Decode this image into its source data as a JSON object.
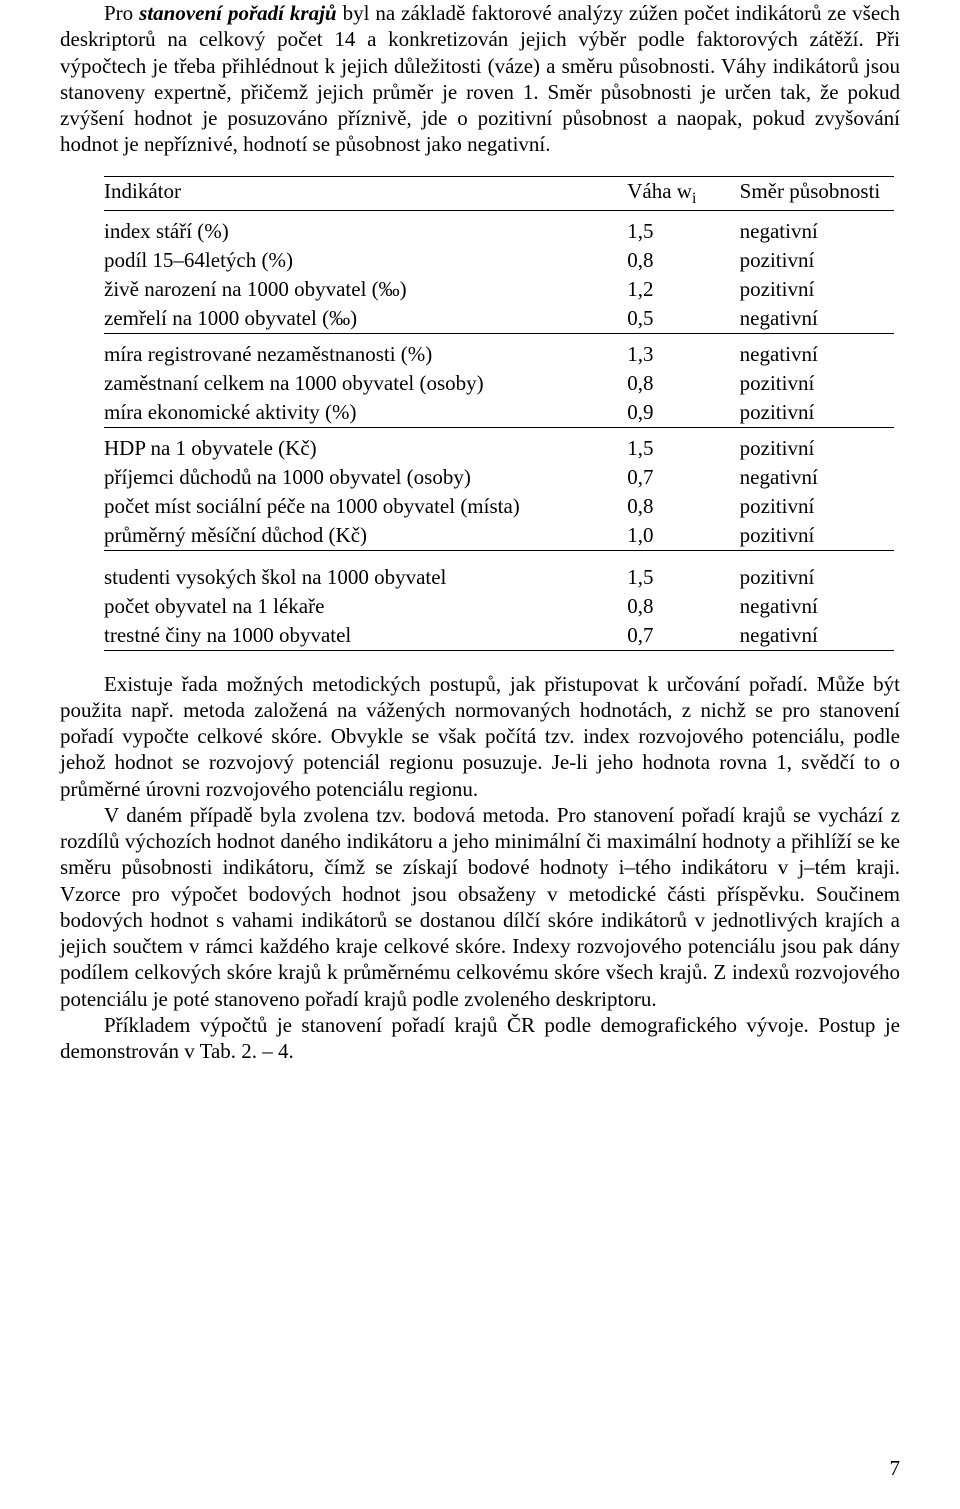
{
  "para1_lead": "Pro ",
  "para1_bold": "stanovení pořadí krajů",
  "para1_rest": " byl na základě faktorové analýzy zúžen počet indikátorů ze všech deskriptorů na celkový počet 14 a konkretizován jejich výběr podle faktorových zátěží. Při výpočtech je třeba přihlédnout k jejich důležitosti (váze) a směru působnosti. Váhy indikátorů jsou stanoveny expertně, přičemž jejich průměr je roven 1. Směr působnosti je určen tak, že pokud zvýšení hodnot je posuzováno příznivě, jde o pozitivní působnost a naopak, pokud zvyšování hodnot je nepříznivé, hodnotí se působnost jako negativní.",
  "table": {
    "header": {
      "c1": "Indikátor",
      "c2_a": "Váha w",
      "c2_b": "i",
      "c3": "Směr působnosti"
    },
    "groups": [
      [
        {
          "ind": "index stáří (%)",
          "w": "1,5",
          "dir": "negativní"
        },
        {
          "ind": "podíl 15–64letých (%)",
          "w": "0,8",
          "dir": "pozitivní"
        },
        {
          "ind": "živě narození na 1000 obyvatel (‰)",
          "w": "1,2",
          "dir": "pozitivní"
        },
        {
          "ind": "zemřelí na 1000 obyvatel (‰)",
          "w": "0,5",
          "dir": "negativní"
        }
      ],
      [
        {
          "ind": "míra registrované nezaměstnanosti (%)",
          "w": "1,3",
          "dir": "negativní"
        },
        {
          "ind": "zaměstnaní celkem na 1000 obyvatel (osoby)",
          "w": "0,8",
          "dir": "pozitivní"
        },
        {
          "ind": "míra ekonomické aktivity (%)",
          "w": "0,9",
          "dir": "pozitivní"
        }
      ],
      [
        {
          "ind": "HDP na 1 obyvatele (Kč)",
          "w": "1,5",
          "dir": "pozitivní"
        },
        {
          "ind": "příjemci důchodů na 1000 obyvatel (osoby)",
          "w": "0,7",
          "dir": "negativní"
        },
        {
          "ind": "počet míst sociální péče na 1000 obyvatel (místa)",
          "w": "0,8",
          "dir": "pozitivní"
        },
        {
          "ind": "průměrný měsíční důchod (Kč)",
          "w": "1,0",
          "dir": "pozitivní"
        }
      ],
      [
        {
          "ind": "studenti vysokých škol na 1000 obyvatel",
          "w": "1,5",
          "dir": "pozitivní"
        },
        {
          "ind": "počet obyvatel na 1 lékaře",
          "w": "0,8",
          "dir": "negativní"
        },
        {
          "ind": "trestné činy na 1000 obyvatel",
          "w": "0,7",
          "dir": "negativní"
        }
      ]
    ]
  },
  "para2": "Existuje řada možných metodických postupů, jak přistupovat k určování pořadí. Může být použita např. metoda založená na vážených normovaných hodnotách, z nichž se pro stanovení pořadí vypočte celkové skóre. Obvykle se však počítá tzv. index rozvojového potenciálu, podle jehož hodnot se rozvojový potenciál regionu posuzuje. Je-li jeho hodnota rovna 1, svědčí to o průměrné úrovni rozvojového potenciálu regionu.",
  "para3": "V daném případě byla zvolena tzv. bodová metoda. Pro stanovení pořadí krajů se vychází z rozdílů výchozích hodnot daného indikátoru a jeho minimální či maximální hodnoty a přihlíží se ke směru působnosti indikátoru, čímž se získají bodové hodnoty i–tého indikátoru v j–tém kraji. Vzorce pro výpočet bodových hodnot jsou obsaženy v metodické části příspěvku. Součinem bodových hodnot s vahami indikátorů se dostanou dílčí skóre indikátorů v jednotlivých krajích a jejich součtem v rámci každého kraje celkové skóre. Indexy rozvojového potenciálu jsou pak dány podílem celkových skóre krajů k průměrnému celkovému skóre všech krajů. Z indexů rozvojového potenciálu je poté stanoveno pořadí krajů podle zvoleného deskriptoru.",
  "para4": "Příkladem výpočtů je stanovení pořadí krajů ČR podle demografického vývoje. Postup je demonstrován v Tab. 2. – 4.",
  "page_number": "7"
}
